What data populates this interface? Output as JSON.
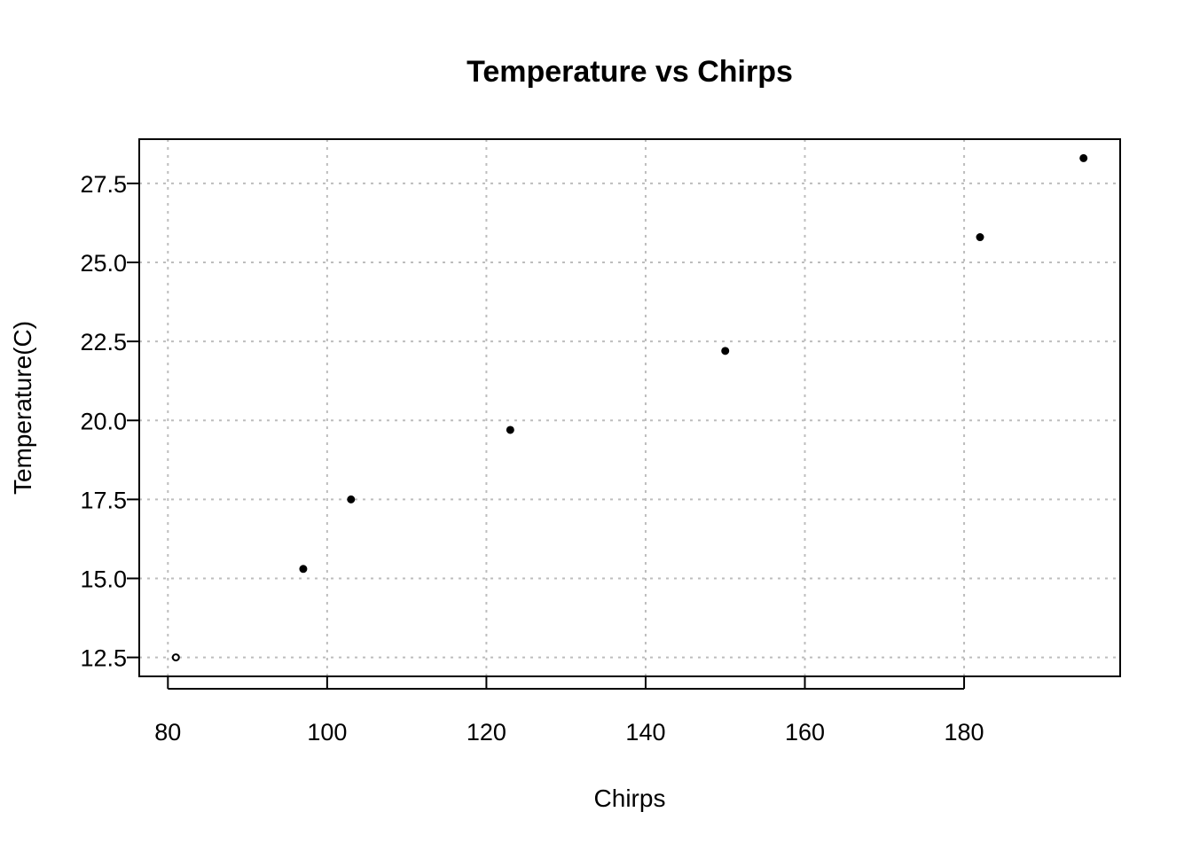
{
  "chart_data": {
    "type": "scatter",
    "title": "Temperature vs Chirps",
    "xlabel": "Chirps",
    "ylabel": "Temperature(C)",
    "xlim": [
      76.4,
      199.6
    ],
    "ylim": [
      11.9,
      28.9
    ],
    "xticks": [
      80,
      100,
      120,
      140,
      160,
      180
    ],
    "xtick_labels": [
      "80",
      "100",
      "120",
      "140",
      "160",
      "180"
    ],
    "yticks": [
      12.5,
      15.0,
      17.5,
      20.0,
      22.5,
      25.0,
      27.5
    ],
    "ytick_labels": [
      "12.5",
      "15.0",
      "17.5",
      "20.0",
      "22.5",
      "25.0",
      "27.5"
    ],
    "grid": true,
    "series": [
      {
        "points": [
          {
            "x": 81,
            "y": 12.5
          },
          {
            "x": 97,
            "y": 15.3
          },
          {
            "x": 103,
            "y": 17.5
          },
          {
            "x": 123,
            "y": 19.7
          },
          {
            "x": 150,
            "y": 22.2
          },
          {
            "x": 182,
            "y": 25.8
          },
          {
            "x": 195,
            "y": 28.3
          }
        ]
      }
    ]
  }
}
